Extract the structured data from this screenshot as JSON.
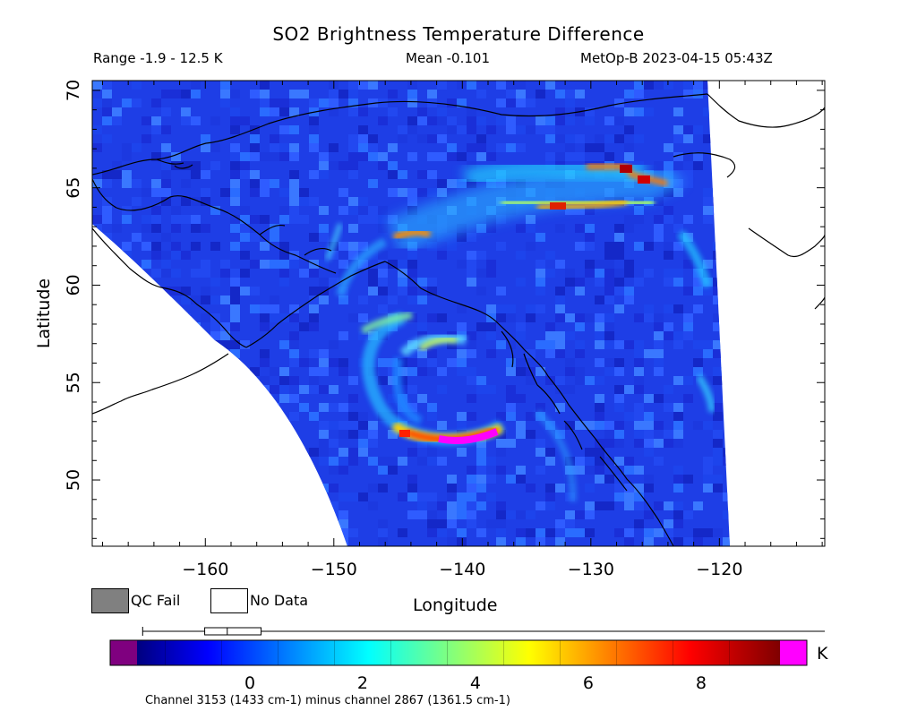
{
  "header": {
    "title": "SO2 Brightness Temperature Difference",
    "range": "Range -1.9 - 12.5 K",
    "mean": "Mean -0.101",
    "satellite": "MetOp-B 2023-04-15 05:43Z"
  },
  "axes": {
    "xlabel": "Longitude",
    "ylabel": "Latitude",
    "x_ticks": [
      -160,
      -150,
      -140,
      -130,
      -120
    ],
    "x_tick_labels": [
      "−160",
      "−150",
      "−140",
      "−130",
      "−120"
    ],
    "y_ticks": [
      50,
      55,
      60,
      65,
      70
    ],
    "y_tick_labels": [
      "50",
      "55",
      "60",
      "65",
      "70"
    ],
    "xlim": [
      -168.8,
      -111.8
    ],
    "ylim": [
      46.6,
      70.5
    ]
  },
  "legend": {
    "qc_fail": "QC Fail",
    "no_data": "No Data",
    "qc_fail_color": "#808080",
    "no_data_color": "#ffffff"
  },
  "colorbar": {
    "unit": "K",
    "range": [
      -2,
      9.4
    ],
    "tick_values": [
      0,
      2,
      4,
      6,
      8
    ],
    "tick_labels": [
      "0",
      "2",
      "4",
      "6",
      "8"
    ],
    "under_color": "#7f007f",
    "over_color": "#ff00ff",
    "caption": "Channel 3153 (1433 cm-1) minus channel 2867 (1361.5 cm-1)",
    "boxplot": {
      "min": -1.9,
      "q1": -0.8,
      "median": -0.4,
      "q3": 0.2,
      "max": 12.5
    }
  },
  "map_features": {
    "plume": "SO2 plume"
  }
}
